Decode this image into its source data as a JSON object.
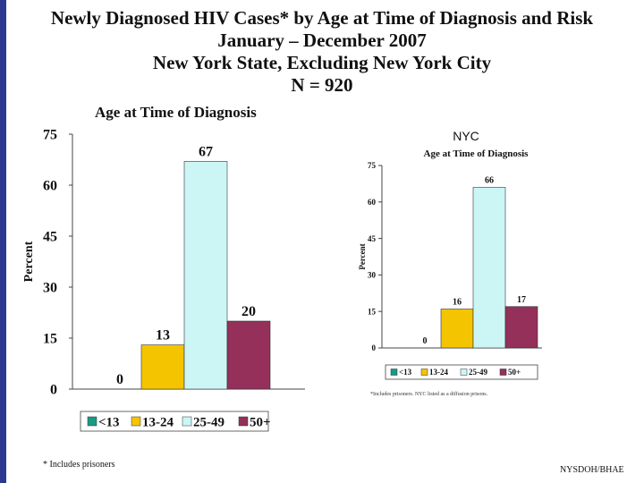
{
  "title_lines": [
    "Newly Diagnosed HIV Cases* by Age at Time of Diagnosis and Risk",
    "January – December 2007",
    "New York State, Excluding New York City",
    "N = 920"
  ],
  "footnote": "*  Includes prisoners",
  "footer": "NYSDOH/BHAE",
  "colors": {
    "<13": "#1a9a86",
    "13-24": "#f5c400",
    "25-49": "#ccf6f6",
    "50+": "#94305a"
  },
  "chart_data": [
    {
      "type": "bar",
      "label": "",
      "title": "Age at Time of Diagnosis",
      "ylabel": "Percent",
      "xlabel": "",
      "ylim": [
        0,
        75
      ],
      "yticks": [
        "0",
        "15",
        "30",
        "45",
        "60",
        "75"
      ],
      "categories": [
        "<13",
        "13-24",
        "25-49",
        "50+"
      ],
      "values": [
        0,
        13,
        67,
        20
      ],
      "data_labels": [
        "0",
        "13",
        "67",
        "20"
      ],
      "legend": [
        "<13",
        "13-24",
        "25-49",
        "50+"
      ],
      "legend_position": "bottom",
      "grid": false
    },
    {
      "type": "bar",
      "label": "NYC",
      "title": "Age at Time of Diagnosis",
      "ylabel": "Percent",
      "xlabel": "",
      "ylim": [
        0,
        75
      ],
      "yticks": [
        "0",
        "15",
        "30",
        "45",
        "60",
        "75"
      ],
      "categories": [
        "<13",
        "13-24",
        "25-49",
        "50+"
      ],
      "values": [
        0,
        16,
        66,
        17
      ],
      "data_labels": [
        "0",
        "16",
        "66",
        "17"
      ],
      "legend": [
        "<13",
        "13-24",
        "25-49",
        "50+"
      ],
      "legend_position": "bottom",
      "grid": false,
      "footnote": "*Includes prisoners. NYC listed as a diffusion prisons."
    }
  ]
}
